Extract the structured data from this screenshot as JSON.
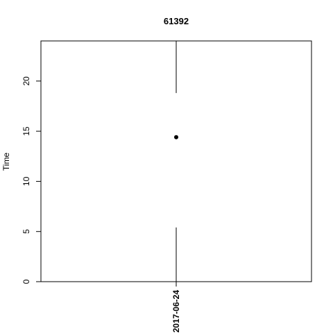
{
  "chart_data": {
    "type": "scatter",
    "title": "61392",
    "xlabel": "",
    "ylabel": "Time",
    "categories": [
      "2017-06-24"
    ],
    "points": [
      {
        "x": "2017-06-24",
        "y": 14.4
      }
    ],
    "segments": [
      {
        "x": "2017-06-24",
        "y_from": 0,
        "y_to": 5.4
      },
      {
        "x": "2017-06-24",
        "y_from": 18.8,
        "y_to": 24
      }
    ],
    "ylim": [
      0,
      24
    ],
    "y_ticks": [
      "0",
      "5",
      "10",
      "15",
      "20"
    ],
    "grid": false,
    "legend": "none"
  }
}
